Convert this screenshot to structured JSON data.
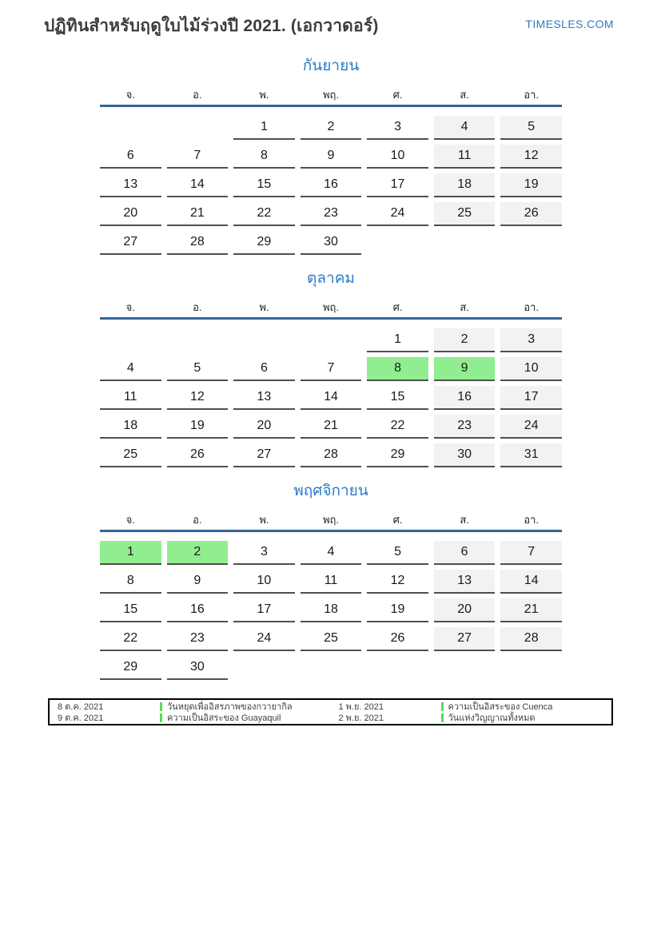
{
  "header": {
    "title": "ปฏิทินสำหรับฤดูใบไม้ร่วงปี 2021. (เอกวาดอร์)",
    "site": "TIMESLES.COM"
  },
  "weekday_labels": [
    "จ.",
    "อ.",
    "พ.",
    "พฤ.",
    "ศ.",
    "ส.",
    "อา."
  ],
  "months": [
    {
      "name": "กันยายน",
      "holidays": [],
      "weeks": [
        [
          null,
          null,
          1,
          2,
          3,
          4,
          5
        ],
        [
          6,
          7,
          8,
          9,
          10,
          11,
          12
        ],
        [
          13,
          14,
          15,
          16,
          17,
          18,
          19
        ],
        [
          20,
          21,
          22,
          23,
          24,
          25,
          26
        ],
        [
          27,
          28,
          29,
          30,
          null,
          null,
          null
        ]
      ]
    },
    {
      "name": "ตุลาคม",
      "holidays": [
        8,
        9
      ],
      "weeks": [
        [
          null,
          null,
          null,
          null,
          1,
          2,
          3
        ],
        [
          4,
          5,
          6,
          7,
          8,
          9,
          10
        ],
        [
          11,
          12,
          13,
          14,
          15,
          16,
          17
        ],
        [
          18,
          19,
          20,
          21,
          22,
          23,
          24
        ],
        [
          25,
          26,
          27,
          28,
          29,
          30,
          31
        ]
      ]
    },
    {
      "name": "พฤศจิกายน",
      "holidays": [
        1,
        2
      ],
      "weeks": [
        [
          1,
          2,
          3,
          4,
          5,
          6,
          7
        ],
        [
          8,
          9,
          10,
          11,
          12,
          13,
          14
        ],
        [
          15,
          16,
          17,
          18,
          19,
          20,
          21
        ],
        [
          22,
          23,
          24,
          25,
          26,
          27,
          28
        ],
        [
          29,
          30,
          null,
          null,
          null,
          null,
          null
        ]
      ]
    }
  ],
  "legend": {
    "columns": [
      {
        "entries": [
          {
            "date": "8 ต.ค. 2021",
            "name": "วันหยุดเพื่ออิสรภาพของกวายากิล"
          },
          {
            "date": "9 ต.ค. 2021",
            "name": "ความเป็นอิสระของ Guayaquil"
          }
        ]
      },
      {
        "entries": [
          {
            "date": "1 พ.ย. 2021",
            "name": "ความเป็นอิสระของ Cuenca"
          },
          {
            "date": "2 พ.ย. 2021",
            "name": "วันแห่งวิญญาณทั้งหมด"
          }
        ]
      }
    ]
  },
  "colors": {
    "accent_blue": "#2b7bc8",
    "rule_blue": "#336699",
    "holiday_green": "#90ee90",
    "weekend_gray": "#f2f2f2",
    "legend_marker_green": "#55dd55",
    "cell_underline": "#4f4f4f",
    "title_text": "#3c3c3c"
  }
}
